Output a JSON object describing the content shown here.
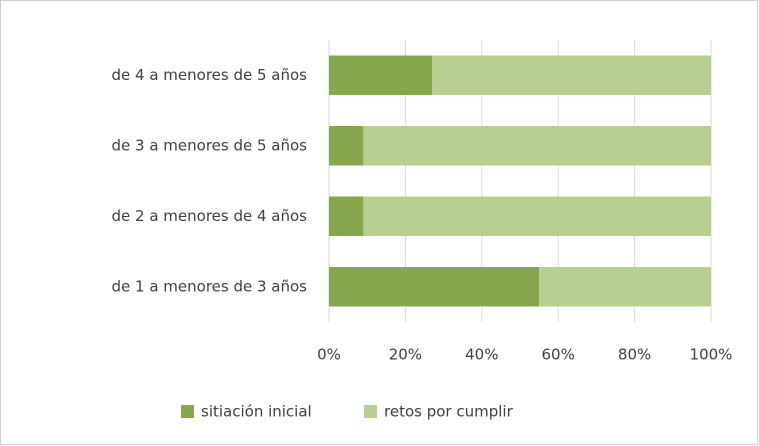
{
  "chart_data": {
    "type": "stacked_bar_horizontal",
    "categories": [
      "de 4 a menores de 5 años",
      "de 3 a menores de 5 años",
      "de 2 a menores de 4 años",
      "de 1 a menores de 3 años"
    ],
    "series": [
      {
        "name": "sitiación inicial",
        "color": "#87a74d",
        "values": [
          27,
          9,
          9,
          55
        ]
      },
      {
        "name": "retos por cumplir",
        "color": "#b9cf92",
        "values": [
          73,
          91,
          91,
          45
        ]
      }
    ],
    "xlim": [
      0,
      100
    ],
    "xticks": [
      {
        "value": 0,
        "label": "0%"
      },
      {
        "value": 20,
        "label": "20%"
      },
      {
        "value": 40,
        "label": "40%"
      },
      {
        "value": 60,
        "label": "60%"
      },
      {
        "value": 80,
        "label": "80%"
      },
      {
        "value": 100,
        "label": "100%"
      }
    ],
    "grid": true,
    "legend": "bottom"
  }
}
